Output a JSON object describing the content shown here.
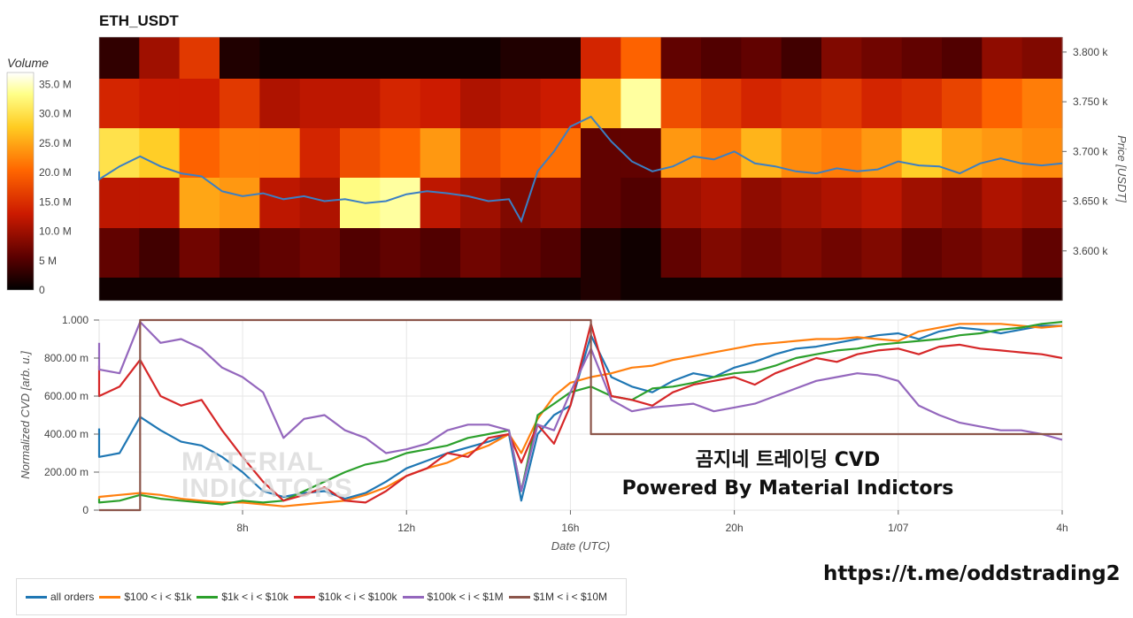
{
  "title": "ETH_USDT",
  "colorbar": {
    "title": "Volume",
    "ticks": [
      "35.0 M",
      "30.0 M",
      "25.0 M",
      "20.0 M",
      "15.0 M",
      "10.0 M",
      "5 M",
      "0"
    ]
  },
  "top_chart": {
    "y_ticks": [
      "3.800 k",
      "3.750 k",
      "3.700 k",
      "3.650 k",
      "3.600 k"
    ],
    "ylabel": "Price [USDT]"
  },
  "bottom_chart": {
    "y_ticks": [
      "1.000",
      "800.00 m",
      "600.00 m",
      "400.00 m",
      "200.00 m",
      "0"
    ],
    "x_ticks": [
      "8h",
      "12h",
      "16h",
      "20h",
      "1/07",
      "4h"
    ],
    "ylabel": "Normalized CVD [arb. u.]",
    "xlabel": "Date (UTC)"
  },
  "overlay": {
    "line1": "곰지네 트레이딩 CVD",
    "line2": "Powered By Material Indictors"
  },
  "watermark": [
    "MATERIAL",
    "INDICATORS"
  ],
  "url": "https://t.me/oddstrading2",
  "legend": [
    {
      "label": "all orders",
      "color": "#1f77b4"
    },
    {
      "label": "$100 < i < $1k",
      "color": "#ff7f0e"
    },
    {
      "label": "$1k < i < $10k",
      "color": "#2ca02c"
    },
    {
      "label": "$10k < i < $100k",
      "color": "#d62728"
    },
    {
      "label": "$100k < i < $1M",
      "color": "#9467bd"
    },
    {
      "label": "$1M < i < $10M",
      "color": "#8c564b"
    }
  ],
  "chart_data": [
    {
      "type": "heatmap",
      "title": "ETH_USDT",
      "ylabel": "Price [USDT]",
      "colorbar_label": "Volume",
      "colorbar_range": [
        0,
        37000000
      ],
      "price_bands": [
        3550,
        3575,
        3625,
        3675,
        3725,
        3775,
        3825
      ],
      "time_range_hours": [
        4,
        28
      ],
      "volume_profile_millions": [
        [
          1,
          1,
          1,
          1,
          1,
          1,
          1,
          1,
          1,
          1,
          1,
          1,
          2,
          1,
          1,
          1,
          1,
          1,
          1,
          1,
          1,
          1,
          1,
          1
        ],
        [
          6,
          4,
          7,
          5,
          6,
          7,
          5,
          6,
          5,
          7,
          6,
          5,
          2,
          1,
          6,
          8,
          7,
          8,
          7,
          8,
          6,
          7,
          8,
          6
        ],
        [
          12,
          12,
          25,
          24,
          12,
          11,
          33,
          34,
          12,
          10,
          8,
          9,
          6,
          5,
          10,
          11,
          9,
          10,
          11,
          12,
          10,
          9,
          11,
          10
        ],
        [
          30,
          28,
          20,
          22,
          22,
          14,
          18,
          20,
          24,
          18,
          20,
          21,
          6,
          6,
          24,
          22,
          26,
          23,
          22,
          24,
          28,
          25,
          24,
          23
        ],
        [
          14,
          13,
          13,
          16,
          11,
          12,
          12,
          14,
          13,
          11,
          12,
          13,
          26,
          34,
          18,
          16,
          14,
          15,
          16,
          14,
          15,
          17,
          20,
          22
        ],
        [
          3,
          10,
          16,
          2,
          1,
          1,
          1,
          1,
          1,
          1,
          2,
          2,
          14,
          20,
          6,
          5,
          6,
          4,
          8,
          7,
          6,
          5,
          9,
          8
        ]
      ],
      "price_series": {
        "name": "",
        "x_hours": [
          4,
          4.5,
          5,
          5.5,
          6,
          6.5,
          7,
          7.5,
          8,
          8.5,
          9,
          9.5,
          10,
          10.5,
          11,
          11.5,
          12,
          12.5,
          13,
          13.5,
          14,
          14.5,
          14.8,
          15.2,
          15.6,
          16,
          16.5,
          17,
          17.5,
          18,
          18.5,
          19,
          19.5,
          20,
          20.5,
          21,
          21.5,
          22,
          22.5,
          23,
          23.5,
          24,
          24.5,
          25,
          25.5,
          26,
          26.5,
          27,
          27.5,
          28
        ],
        "values": [
          3680,
          3672,
          3685,
          3695,
          3685,
          3678,
          3675,
          3660,
          3655,
          3658,
          3652,
          3655,
          3650,
          3652,
          3648,
          3650,
          3657,
          3660,
          3658,
          3655,
          3650,
          3652,
          3630,
          3680,
          3700,
          3725,
          3735,
          3710,
          3690,
          3680,
          3685,
          3695,
          3692,
          3700,
          3688,
          3685,
          3680,
          3678,
          3683,
          3680,
          3682,
          3690,
          3686,
          3685,
          3678,
          3688,
          3693,
          3688,
          3686,
          3688
        ]
      },
      "ylim": [
        3550,
        3815
      ]
    },
    {
      "type": "line",
      "xlabel": "Date (UTC)",
      "ylabel": "Normalized CVD [arb. u.]",
      "x_ticks": [
        "8h",
        "12h",
        "16h",
        "20h",
        "1/07",
        "4h"
      ],
      "ylim": [
        0,
        1
      ],
      "x": [
        4,
        4.5,
        5,
        5.5,
        6,
        6.5,
        7,
        7.5,
        8,
        8.5,
        9,
        9.5,
        10,
        10.5,
        11,
        11.5,
        12,
        12.5,
        13,
        13.5,
        14,
        14.5,
        14.8,
        15.2,
        15.6,
        16,
        16.5,
        17,
        17.5,
        18,
        18.5,
        19,
        19.5,
        20,
        20.5,
        21,
        21.5,
        22,
        22.5,
        23,
        23.5,
        24,
        24.5,
        25,
        25.5,
        26,
        26.5,
        27,
        27.5,
        28
      ],
      "series": [
        {
          "name": "all orders",
          "values": [
            0.43,
            0.28,
            0.3,
            0.49,
            0.42,
            0.36,
            0.34,
            0.28,
            0.2,
            0.1,
            0.07,
            0.09,
            0.1,
            0.06,
            0.09,
            0.15,
            0.22,
            0.26,
            0.3,
            0.33,
            0.36,
            0.4,
            0.05,
            0.4,
            0.5,
            0.55,
            0.92,
            0.7,
            0.65,
            0.62,
            0.68,
            0.72,
            0.7,
            0.75,
            0.78,
            0.82,
            0.85,
            0.86,
            0.88,
            0.9,
            0.92,
            0.93,
            0.9,
            0.94,
            0.96,
            0.95,
            0.93,
            0.95,
            0.97,
            0.97
          ]
        },
        {
          "name": "$100 < i < $1k",
          "values": [
            0.06,
            0.07,
            0.08,
            0.09,
            0.08,
            0.06,
            0.05,
            0.04,
            0.04,
            0.03,
            0.02,
            0.03,
            0.04,
            0.05,
            0.08,
            0.12,
            0.18,
            0.22,
            0.25,
            0.3,
            0.34,
            0.4,
            0.3,
            0.48,
            0.6,
            0.67,
            0.7,
            0.72,
            0.75,
            0.76,
            0.79,
            0.81,
            0.83,
            0.85,
            0.87,
            0.88,
            0.89,
            0.9,
            0.9,
            0.91,
            0.9,
            0.89,
            0.94,
            0.96,
            0.98,
            0.98,
            0.98,
            0.97,
            0.96,
            0.97
          ]
        },
        {
          "name": "$1k < i < $10k",
          "values": [
            0.06,
            0.04,
            0.05,
            0.08,
            0.06,
            0.05,
            0.04,
            0.03,
            0.05,
            0.04,
            0.05,
            0.1,
            0.15,
            0.2,
            0.24,
            0.26,
            0.3,
            0.32,
            0.34,
            0.38,
            0.4,
            0.42,
            0.1,
            0.5,
            0.56,
            0.62,
            0.65,
            0.6,
            0.58,
            0.64,
            0.65,
            0.67,
            0.7,
            0.72,
            0.73,
            0.76,
            0.8,
            0.82,
            0.84,
            0.85,
            0.87,
            0.88,
            0.89,
            0.9,
            0.92,
            0.93,
            0.95,
            0.96,
            0.98,
            0.99
          ]
        },
        {
          "name": "$10k < i < $100k",
          "values": [
            0.76,
            0.6,
            0.65,
            0.79,
            0.6,
            0.55,
            0.58,
            0.42,
            0.28,
            0.15,
            0.05,
            0.08,
            0.12,
            0.05,
            0.04,
            0.1,
            0.18,
            0.22,
            0.3,
            0.28,
            0.38,
            0.4,
            0.25,
            0.45,
            0.35,
            0.55,
            0.98,
            0.6,
            0.58,
            0.55,
            0.62,
            0.66,
            0.68,
            0.7,
            0.66,
            0.72,
            0.76,
            0.8,
            0.78,
            0.82,
            0.84,
            0.85,
            0.82,
            0.86,
            0.87,
            0.85,
            0.84,
            0.83,
            0.82,
            0.8
          ]
        },
        {
          "name": "$100k < i < $1M",
          "values": [
            0.88,
            0.74,
            0.72,
            0.99,
            0.88,
            0.9,
            0.85,
            0.75,
            0.7,
            0.62,
            0.38,
            0.48,
            0.5,
            0.42,
            0.38,
            0.3,
            0.32,
            0.35,
            0.42,
            0.45,
            0.45,
            0.42,
            0.1,
            0.45,
            0.42,
            0.62,
            0.85,
            0.58,
            0.52,
            0.54,
            0.55,
            0.56,
            0.52,
            0.54,
            0.56,
            0.6,
            0.64,
            0.68,
            0.7,
            0.72,
            0.71,
            0.68,
            0.55,
            0.5,
            0.46,
            0.44,
            0.42,
            0.42,
            0.4,
            0.37
          ]
        },
        {
          "name": "$1M < i < $10M",
          "values": [
            0.0,
            0.0,
            0.0,
            1.0,
            1.0,
            1.0,
            1.0,
            1.0,
            1.0,
            1.0,
            1.0,
            1.0,
            1.0,
            1.0,
            1.0,
            1.0,
            1.0,
            1.0,
            1.0,
            1.0,
            1.0,
            1.0,
            1.0,
            1.0,
            1.0,
            1.0,
            0.4,
            0.4,
            0.4,
            0.4,
            0.4,
            0.4,
            0.4,
            0.4,
            0.4,
            0.4,
            0.4,
            0.4,
            0.4,
            0.4,
            0.4,
            0.4,
            0.4,
            0.4,
            0.4,
            0.4,
            0.4,
            0.4,
            0.4,
            0.4
          ]
        }
      ]
    }
  ]
}
